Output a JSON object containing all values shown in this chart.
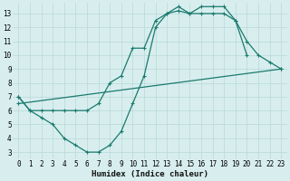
{
  "line1_x": [
    0,
    1,
    2,
    3,
    4,
    5,
    6,
    7,
    8,
    9,
    10,
    11,
    12,
    13,
    14,
    15,
    16,
    17,
    18,
    19,
    20
  ],
  "line1_y": [
    7.0,
    6.0,
    5.5,
    5.0,
    4.0,
    3.5,
    3.0,
    3.0,
    3.5,
    4.5,
    6.5,
    8.5,
    12.0,
    13.0,
    13.2,
    13.0,
    13.5,
    13.5,
    13.5,
    12.5,
    10.0
  ],
  "line2_x": [
    0,
    1,
    2,
    3,
    4,
    5,
    6,
    7,
    8,
    9,
    10,
    11,
    12,
    13,
    14,
    15,
    16,
    17,
    18,
    19,
    20,
    21,
    22,
    23
  ],
  "line2_y": [
    7.0,
    6.0,
    6.0,
    6.0,
    6.0,
    6.0,
    6.0,
    6.5,
    8.0,
    8.5,
    10.5,
    10.5,
    12.5,
    13.0,
    13.5,
    13.0,
    13.0,
    13.0,
    13.0,
    12.5,
    11.0,
    10.0,
    9.5,
    9.0
  ],
  "line3_x": [
    0,
    23
  ],
  "line3_y": [
    6.5,
    9.0
  ],
  "color": "#1a7a6e",
  "bg_color": "#d8eeee",
  "grid_color": "#b8d8d8",
  "xlabel": "Humidex (Indice chaleur)",
  "xlim": [
    -0.5,
    23.5
  ],
  "ylim": [
    2.5,
    13.75
  ],
  "xticks": [
    0,
    1,
    2,
    3,
    4,
    5,
    6,
    7,
    8,
    9,
    10,
    11,
    12,
    13,
    14,
    15,
    16,
    17,
    18,
    19,
    20,
    21,
    22,
    23
  ],
  "yticks": [
    3,
    4,
    5,
    6,
    7,
    8,
    9,
    10,
    11,
    12,
    13
  ],
  "label_fontsize": 6.5,
  "tick_fontsize": 5.5
}
